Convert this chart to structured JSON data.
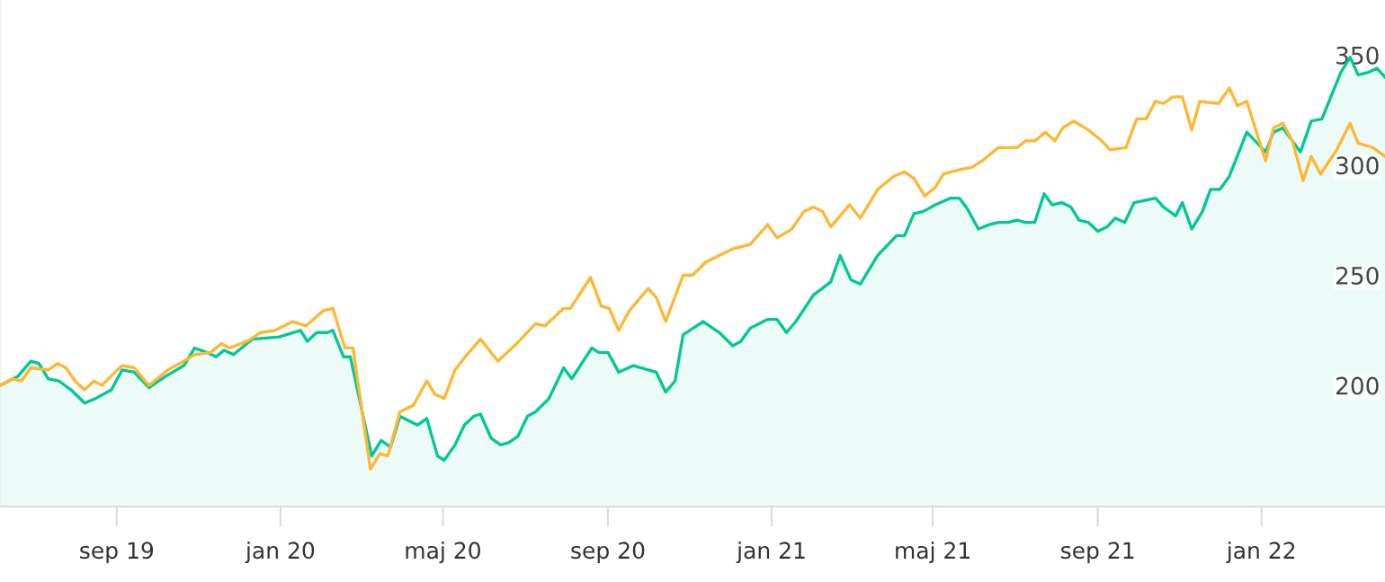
{
  "chart_data": {
    "type": "line",
    "xlim": [
      "2019-06-06",
      "2022-04-03"
    ],
    "xticks": [
      {
        "value": "2019-09-01",
        "label": "sep 19"
      },
      {
        "value": "2020-01-01",
        "label": "jan 20"
      },
      {
        "value": "2020-05-01",
        "label": "maj 20"
      },
      {
        "value": "2020-09-01",
        "label": "sep 20"
      },
      {
        "value": "2021-01-01",
        "label": "jan 21"
      },
      {
        "value": "2021-05-01",
        "label": "maj 21"
      },
      {
        "value": "2021-09-01",
        "label": "sep 21"
      },
      {
        "value": "2022-01-01",
        "label": "jan 22"
      }
    ],
    "ylim": [
      145,
      375
    ],
    "yticks": [
      200,
      250,
      300,
      350
    ],
    "grid": false,
    "legend": false,
    "series": [
      {
        "type": "area",
        "color": "#00c896",
        "x": [
          "2019-06-06",
          "2019-06-19",
          "2019-06-29",
          "2019-07-05",
          "2019-07-12",
          "2019-07-20",
          "2019-07-29",
          "2019-08-08",
          "2019-08-16",
          "2019-08-28",
          "2019-09-05",
          "2019-09-14",
          "2019-09-25",
          "2019-10-07",
          "2019-10-21",
          "2019-10-29",
          "2019-11-07",
          "2019-11-14",
          "2019-11-20",
          "2019-11-27",
          "2019-12-11",
          "2019-12-31",
          "2020-01-16",
          "2020-01-21",
          "2020-01-28",
          "2020-02-05",
          "2020-02-09",
          "2020-02-17",
          "2020-02-22",
          "2020-03-09",
          "2020-03-16",
          "2020-03-23",
          "2020-03-30",
          "2020-04-12",
          "2020-04-19",
          "2020-04-27",
          "2020-05-02",
          "2020-05-10",
          "2020-05-17",
          "2020-05-24",
          "2020-05-29",
          "2020-06-06",
          "2020-06-13",
          "2020-06-19",
          "2020-06-26",
          "2020-07-03",
          "2020-07-09",
          "2020-07-19",
          "2020-07-30",
          "2020-08-05",
          "2020-08-20",
          "2020-08-25",
          "2020-09-01",
          "2020-09-09",
          "2020-09-20",
          "2020-10-01",
          "2020-10-07",
          "2020-10-14",
          "2020-10-21",
          "2020-10-27",
          "2020-11-11",
          "2020-11-23",
          "2020-12-03",
          "2020-12-09",
          "2020-12-16",
          "2020-12-29",
          "2021-01-05",
          "2021-01-12",
          "2021-01-19",
          "2021-02-01",
          "2021-02-14",
          "2021-02-21",
          "2021-03-01",
          "2021-03-08",
          "2021-03-21",
          "2021-04-04",
          "2021-04-10",
          "2021-04-17",
          "2021-04-24",
          "2021-05-03",
          "2021-05-14",
          "2021-05-21",
          "2021-05-27",
          "2021-06-04",
          "2021-06-12",
          "2021-06-19",
          "2021-06-26",
          "2021-07-03",
          "2021-07-09",
          "2021-07-16",
          "2021-07-23",
          "2021-07-29",
          "2021-08-05",
          "2021-08-12",
          "2021-08-18",
          "2021-08-25",
          "2021-09-01",
          "2021-09-08",
          "2021-09-14",
          "2021-09-21",
          "2021-09-28",
          "2021-10-14",
          "2021-10-20",
          "2021-10-29",
          "2021-11-03",
          "2021-11-10",
          "2021-11-18",
          "2021-11-24",
          "2021-12-01",
          "2021-12-08",
          "2021-12-21",
          "2022-01-04",
          "2022-01-10",
          "2022-01-17",
          "2022-01-24",
          "2022-01-30",
          "2022-02-07",
          "2022-02-15",
          "2022-03-01",
          "2022-03-08",
          "2022-03-14",
          "2022-03-21",
          "2022-03-28",
          "2022-04-03"
        ],
        "values": [
          200,
          204,
          211,
          210,
          203,
          202,
          198,
          192,
          194,
          198,
          207,
          206,
          199,
          204,
          209,
          217,
          215,
          213,
          216,
          214,
          221,
          222,
          225,
          220,
          224,
          224,
          225,
          213,
          213,
          168,
          175,
          172,
          186,
          182,
          185,
          168,
          166,
          173,
          182,
          186,
          187,
          176,
          173,
          174,
          177,
          186,
          188,
          194,
          208,
          203,
          217,
          215,
          215,
          206,
          209,
          207,
          206,
          197,
          202,
          223,
          229,
          224,
          218,
          220,
          226,
          230,
          230,
          224,
          229,
          241,
          247,
          259,
          248,
          246,
          259,
          268,
          268,
          278,
          279,
          282,
          285,
          285,
          280,
          271,
          273,
          274,
          274,
          275,
          274,
          274,
          287,
          282,
          283,
          281,
          275,
          274,
          270,
          272,
          276,
          274,
          283,
          285,
          281,
          277,
          283,
          271,
          279,
          289,
          289,
          295,
          315,
          306,
          315,
          317,
          311,
          306,
          320,
          321,
          342,
          349,
          341,
          342,
          344,
          340
        ]
      },
      {
        "type": "line",
        "color": "#ffb732",
        "x": [
          "2019-06-06",
          "2019-06-15",
          "2019-06-22",
          "2019-06-29",
          "2019-07-12",
          "2019-07-19",
          "2019-07-25",
          "2019-08-01",
          "2019-08-08",
          "2019-08-15",
          "2019-08-21",
          "2019-08-29",
          "2019-09-05",
          "2019-09-14",
          "2019-09-25",
          "2019-10-09",
          "2019-10-21",
          "2019-10-29",
          "2019-11-10",
          "2019-11-18",
          "2019-11-24",
          "2019-12-07",
          "2019-12-17",
          "2019-12-28",
          "2020-01-10",
          "2020-01-20",
          "2020-02-02",
          "2020-02-09",
          "2020-02-18",
          "2020-02-24",
          "2020-03-08",
          "2020-03-15",
          "2020-03-21",
          "2020-03-30",
          "2020-04-09",
          "2020-04-19",
          "2020-04-25",
          "2020-05-02",
          "2020-05-10",
          "2020-05-19",
          "2020-05-29",
          "2020-06-11",
          "2020-06-25",
          "2020-07-09",
          "2020-07-16",
          "2020-07-30",
          "2020-08-04",
          "2020-08-19",
          "2020-08-27",
          "2020-09-02",
          "2020-09-09",
          "2020-09-17",
          "2020-10-01",
          "2020-10-07",
          "2020-10-14",
          "2020-10-27",
          "2020-11-03",
          "2020-11-13",
          "2020-11-23",
          "2020-12-03",
          "2020-12-16",
          "2020-12-29",
          "2021-01-05",
          "2021-01-16",
          "2021-01-25",
          "2021-02-01",
          "2021-02-08",
          "2021-02-14",
          "2021-02-28",
          "2021-03-08",
          "2021-03-21",
          "2021-04-02",
          "2021-04-10",
          "2021-04-17",
          "2021-04-25",
          "2021-05-03",
          "2021-05-09",
          "2021-05-21",
          "2021-05-30",
          "2021-06-07",
          "2021-06-19",
          "2021-07-03",
          "2021-07-09",
          "2021-07-16",
          "2021-07-24",
          "2021-07-31",
          "2021-08-06",
          "2021-08-14",
          "2021-08-25",
          "2021-09-04",
          "2021-09-10",
          "2021-09-22",
          "2021-09-30",
          "2021-10-07",
          "2021-10-14",
          "2021-10-20",
          "2021-10-27",
          "2021-11-03",
          "2021-11-10",
          "2021-11-16",
          "2021-11-30",
          "2021-12-08",
          "2021-12-14",
          "2021-12-21",
          "2022-01-04",
          "2022-01-10",
          "2022-01-17",
          "2022-01-24",
          "2022-02-01",
          "2022-02-07",
          "2022-02-14",
          "2022-02-26",
          "2022-03-08",
          "2022-03-14",
          "2022-03-25",
          "2022-04-03"
        ],
        "values": [
          200,
          203,
          202,
          208,
          207,
          210,
          208,
          202,
          198,
          202,
          200,
          205,
          209,
          208,
          200,
          207,
          211,
          214,
          215,
          219,
          217,
          220,
          224,
          225,
          229,
          227,
          234,
          235,
          217,
          217,
          162,
          169,
          168,
          188,
          191,
          202,
          196,
          194,
          207,
          214,
          221,
          211,
          219,
          228,
          227,
          235,
          235,
          249,
          236,
          235,
          225,
          234,
          244,
          240,
          229,
          250,
          250,
          256,
          259,
          262,
          264,
          273,
          267,
          271,
          279,
          281,
          279,
          272,
          282,
          276,
          289,
          295,
          297,
          294,
          286,
          290,
          296,
          298,
          299,
          302,
          308,
          308,
          311,
          311,
          315,
          311,
          317,
          320,
          316,
          311,
          307,
          308,
          321,
          321,
          329,
          328,
          331,
          331,
          316,
          329,
          328,
          335,
          327,
          329,
          302,
          317,
          319,
          311,
          293,
          304,
          296,
          307,
          319,
          310,
          308,
          304
        ]
      }
    ]
  }
}
